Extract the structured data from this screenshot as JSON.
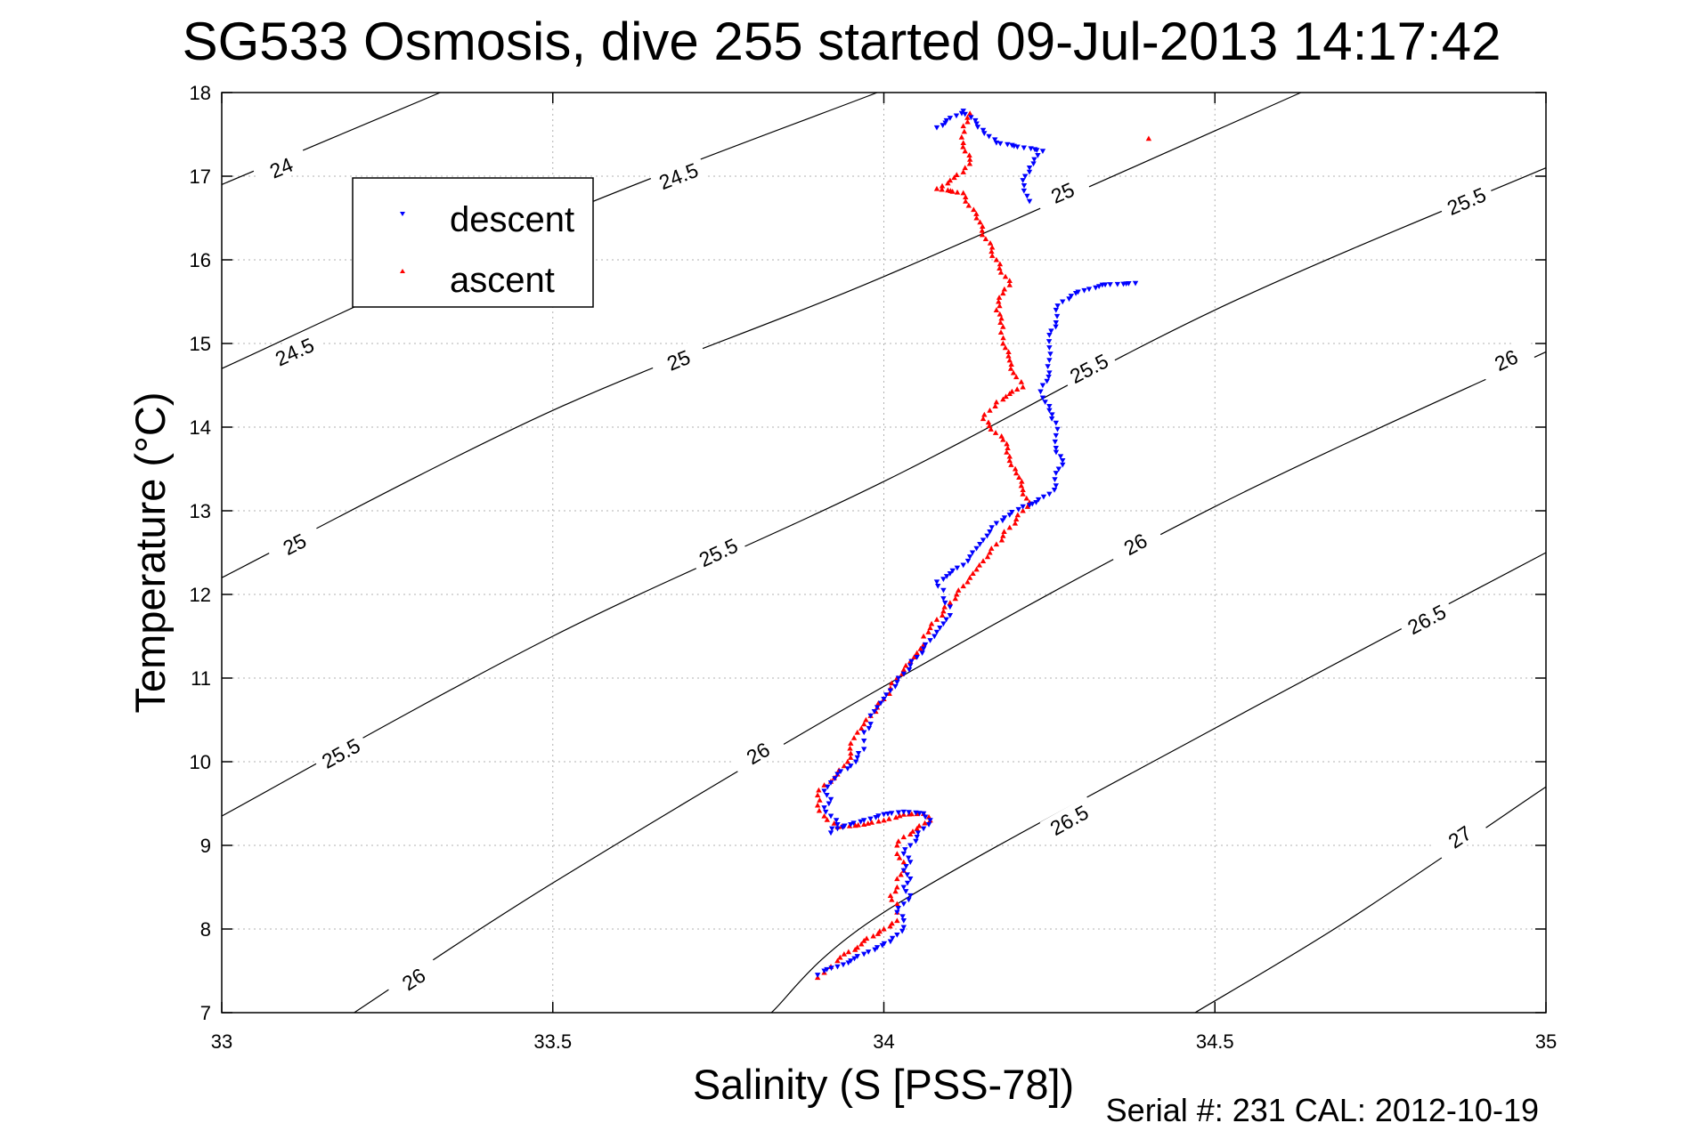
{
  "chart_data": {
    "type": "scatter",
    "title": "SG533 Osmosis, dive 255 started 09-Jul-2013 14:17:42",
    "xlabel": "Salinity (S [PSS-78])",
    "ylabel": "Temperature (°C)",
    "xlim": [
      33,
      35
    ],
    "ylim": [
      7,
      18
    ],
    "xticks": [
      "33",
      "33.5",
      "34",
      "34.5",
      "35"
    ],
    "yticks": [
      "7",
      "8",
      "9",
      "10",
      "11",
      "12",
      "13",
      "14",
      "15",
      "16",
      "17",
      "18"
    ],
    "grid": true,
    "legend": {
      "placement": "upper-left",
      "entries": [
        "descent",
        "ascent"
      ]
    },
    "footer": "Serial #: 231  CAL: 2012-10-19",
    "colors": {
      "descent": "#0000ff",
      "ascent": "#ff0000",
      "contour": "#000000",
      "grid": "#b0b0b0"
    },
    "contours": [
      {
        "level": "24",
        "points": [
          [
            33.0,
            16.9
          ],
          [
            33.33,
            18.0
          ]
        ],
        "labels": [
          [
            33.09,
            17.1
          ]
        ]
      },
      {
        "level": "24.5",
        "points": [
          [
            33.0,
            14.7
          ],
          [
            33.5,
            16.5
          ],
          [
            33.99,
            18.0
          ]
        ],
        "labels": [
          [
            33.11,
            14.9
          ],
          [
            33.69,
            17.0
          ]
        ]
      },
      {
        "level": "25",
        "points": [
          [
            33.0,
            12.2
          ],
          [
            33.5,
            14.2
          ],
          [
            34.0,
            15.8
          ],
          [
            34.63,
            18.0
          ]
        ],
        "labels": [
          [
            33.11,
            12.6
          ],
          [
            33.69,
            14.8
          ],
          [
            34.27,
            16.8
          ]
        ]
      },
      {
        "level": "25.5",
        "points": [
          [
            33.0,
            9.35
          ],
          [
            33.5,
            11.5
          ],
          [
            34.0,
            13.35
          ],
          [
            34.5,
            15.4
          ],
          [
            35.0,
            17.1
          ]
        ],
        "labels": [
          [
            33.18,
            10.1
          ],
          [
            33.75,
            12.5
          ],
          [
            34.31,
            14.7
          ],
          [
            34.88,
            16.7
          ]
        ]
      },
      {
        "level": "26",
        "points": [
          [
            33.2,
            7.0
          ],
          [
            33.5,
            8.55
          ],
          [
            34.0,
            10.9
          ],
          [
            34.5,
            13.05
          ],
          [
            35.0,
            14.9
          ]
        ],
        "labels": [
          [
            33.29,
            7.4
          ],
          [
            33.81,
            10.1
          ],
          [
            34.38,
            12.6
          ],
          [
            34.94,
            14.8
          ]
        ]
      },
      {
        "level": "26.5",
        "points": [
          [
            33.83,
            7.0
          ],
          [
            34.0,
            8.2
          ],
          [
            34.5,
            10.4
          ],
          [
            35.0,
            12.5
          ]
        ],
        "labels": [
          [
            34.28,
            9.3
          ],
          [
            34.82,
            11.7
          ]
        ]
      },
      {
        "level": "27",
        "points": [
          [
            34.47,
            7.0
          ],
          [
            34.7,
            8.1
          ],
          [
            35.0,
            9.7
          ]
        ],
        "labels": [
          [
            34.87,
            9.1
          ]
        ]
      }
    ],
    "series": [
      {
        "name": "descent",
        "marker": "triangle-down",
        "points": [
          [
            33.9,
            7.45
          ],
          [
            33.91,
            7.5
          ],
          [
            33.93,
            7.55
          ],
          [
            33.95,
            7.62
          ],
          [
            33.97,
            7.7
          ],
          [
            33.99,
            7.78
          ],
          [
            34.01,
            7.85
          ],
          [
            34.02,
            7.93
          ],
          [
            34.03,
            8.02
          ],
          [
            34.03,
            8.1
          ],
          [
            34.02,
            8.2
          ],
          [
            34.03,
            8.3
          ],
          [
            34.04,
            8.4
          ],
          [
            34.03,
            8.5
          ],
          [
            34.04,
            8.6
          ],
          [
            34.03,
            8.7
          ],
          [
            34.04,
            8.8
          ],
          [
            34.03,
            8.9
          ],
          [
            34.04,
            9.0
          ],
          [
            34.05,
            9.1
          ],
          [
            34.06,
            9.2
          ],
          [
            34.07,
            9.3
          ],
          [
            34.06,
            9.38
          ],
          [
            34.03,
            9.4
          ],
          [
            34.0,
            9.37
          ],
          [
            33.97,
            9.3
          ],
          [
            33.95,
            9.25
          ],
          [
            33.93,
            9.2
          ],
          [
            33.92,
            9.15
          ],
          [
            33.93,
            9.25
          ],
          [
            33.92,
            9.35
          ],
          [
            33.91,
            9.45
          ],
          [
            33.92,
            9.55
          ],
          [
            33.91,
            9.65
          ],
          [
            33.92,
            9.75
          ],
          [
            33.93,
            9.85
          ],
          [
            33.95,
            9.95
          ],
          [
            33.96,
            10.05
          ],
          [
            33.97,
            10.15
          ],
          [
            33.97,
            10.25
          ],
          [
            33.97,
            10.35
          ],
          [
            33.98,
            10.45
          ],
          [
            33.98,
            10.55
          ],
          [
            33.99,
            10.65
          ],
          [
            34.0,
            10.75
          ],
          [
            34.01,
            10.85
          ],
          [
            34.02,
            10.95
          ],
          [
            34.03,
            11.05
          ],
          [
            34.04,
            11.15
          ],
          [
            34.05,
            11.25
          ],
          [
            34.06,
            11.35
          ],
          [
            34.07,
            11.45
          ],
          [
            34.08,
            11.55
          ],
          [
            34.09,
            11.65
          ],
          [
            34.1,
            11.75
          ],
          [
            34.1,
            11.85
          ],
          [
            34.09,
            11.95
          ],
          [
            34.09,
            12.05
          ],
          [
            34.08,
            12.15
          ],
          [
            34.1,
            12.25
          ],
          [
            34.12,
            12.35
          ],
          [
            34.13,
            12.45
          ],
          [
            34.14,
            12.55
          ],
          [
            34.15,
            12.65
          ],
          [
            34.16,
            12.75
          ],
          [
            34.17,
            12.85
          ],
          [
            34.19,
            12.95
          ],
          [
            34.21,
            13.05
          ],
          [
            34.23,
            13.1
          ],
          [
            34.25,
            13.2
          ],
          [
            34.26,
            13.3
          ],
          [
            34.26,
            13.45
          ],
          [
            34.27,
            13.6
          ],
          [
            34.26,
            13.75
          ],
          [
            34.26,
            13.9
          ],
          [
            34.26,
            14.05
          ],
          [
            34.25,
            14.2
          ],
          [
            34.24,
            14.35
          ],
          [
            34.24,
            14.5
          ],
          [
            34.25,
            14.65
          ],
          [
            34.25,
            14.8
          ],
          [
            34.25,
            14.95
          ],
          [
            34.25,
            15.1
          ],
          [
            34.26,
            15.25
          ],
          [
            34.26,
            15.4
          ],
          [
            34.27,
            15.5
          ],
          [
            34.29,
            15.6
          ],
          [
            34.31,
            15.65
          ],
          [
            34.33,
            15.7
          ],
          [
            34.38,
            15.72
          ],
          [
            34.22,
            16.7
          ],
          [
            34.21,
            16.95
          ],
          [
            34.22,
            17.1
          ],
          [
            34.24,
            17.3
          ],
          [
            34.17,
            17.4
          ],
          [
            34.15,
            17.55
          ],
          [
            34.12,
            17.78
          ],
          [
            34.08,
            17.58
          ]
        ]
      },
      {
        "name": "ascent",
        "marker": "triangle-up",
        "points": [
          [
            33.9,
            7.42
          ],
          [
            33.91,
            7.48
          ],
          [
            33.92,
            7.55
          ],
          [
            33.93,
            7.62
          ],
          [
            33.94,
            7.7
          ],
          [
            33.96,
            7.78
          ],
          [
            33.97,
            7.86
          ],
          [
            34.0,
            8.0
          ],
          [
            34.02,
            8.1
          ],
          [
            34.02,
            8.2
          ],
          [
            34.02,
            8.3
          ],
          [
            34.01,
            8.4
          ],
          [
            34.02,
            8.5
          ],
          [
            34.02,
            8.6
          ],
          [
            34.03,
            8.7
          ],
          [
            34.03,
            8.8
          ],
          [
            34.02,
            8.9
          ],
          [
            34.02,
            9.0
          ],
          [
            34.03,
            9.1
          ],
          [
            34.05,
            9.2
          ],
          [
            34.07,
            9.3
          ],
          [
            34.06,
            9.38
          ],
          [
            34.03,
            9.37
          ],
          [
            34.0,
            9.3
          ],
          [
            33.97,
            9.25
          ],
          [
            33.93,
            9.22
          ],
          [
            33.91,
            9.35
          ],
          [
            33.9,
            9.48
          ],
          [
            33.9,
            9.6
          ],
          [
            33.91,
            9.72
          ],
          [
            33.93,
            9.85
          ],
          [
            33.94,
            9.95
          ],
          [
            33.95,
            10.1
          ],
          [
            33.95,
            10.22
          ],
          [
            33.96,
            10.35
          ],
          [
            33.97,
            10.45
          ],
          [
            33.98,
            10.55
          ],
          [
            33.99,
            10.65
          ],
          [
            34.0,
            10.75
          ],
          [
            34.01,
            10.88
          ],
          [
            34.02,
            11.0
          ],
          [
            34.03,
            11.1
          ],
          [
            34.04,
            11.2
          ],
          [
            34.05,
            11.3
          ],
          [
            34.06,
            11.4
          ],
          [
            34.06,
            11.5
          ],
          [
            34.07,
            11.6
          ],
          [
            34.08,
            11.7
          ],
          [
            34.09,
            11.8
          ],
          [
            34.1,
            11.9
          ],
          [
            34.11,
            12.0
          ],
          [
            34.12,
            12.1
          ],
          [
            34.13,
            12.2
          ],
          [
            34.14,
            12.3
          ],
          [
            34.15,
            12.4
          ],
          [
            34.16,
            12.5
          ],
          [
            34.17,
            12.6
          ],
          [
            34.18,
            12.7
          ],
          [
            34.19,
            12.8
          ],
          [
            34.2,
            12.9
          ],
          [
            34.21,
            13.0
          ],
          [
            34.22,
            13.1
          ],
          [
            34.21,
            13.25
          ],
          [
            34.2,
            13.45
          ],
          [
            34.19,
            13.65
          ],
          [
            34.18,
            13.85
          ],
          [
            34.15,
            14.1
          ],
          [
            34.17,
            14.3
          ],
          [
            34.19,
            14.4
          ],
          [
            34.21,
            14.48
          ],
          [
            34.2,
            14.6
          ],
          [
            34.19,
            14.8
          ],
          [
            34.18,
            15.0
          ],
          [
            34.18,
            15.2
          ],
          [
            34.17,
            15.4
          ],
          [
            34.18,
            15.6
          ],
          [
            34.19,
            15.7
          ],
          [
            34.17,
            16.0
          ],
          [
            34.14,
            16.5
          ],
          [
            34.12,
            16.8
          ],
          [
            34.08,
            16.85
          ],
          [
            34.1,
            16.95
          ],
          [
            34.12,
            17.05
          ],
          [
            34.13,
            17.2
          ],
          [
            34.12,
            17.4
          ],
          [
            34.12,
            17.6
          ],
          [
            34.13,
            17.75
          ],
          [
            34.4,
            17.45
          ]
        ]
      }
    ]
  }
}
